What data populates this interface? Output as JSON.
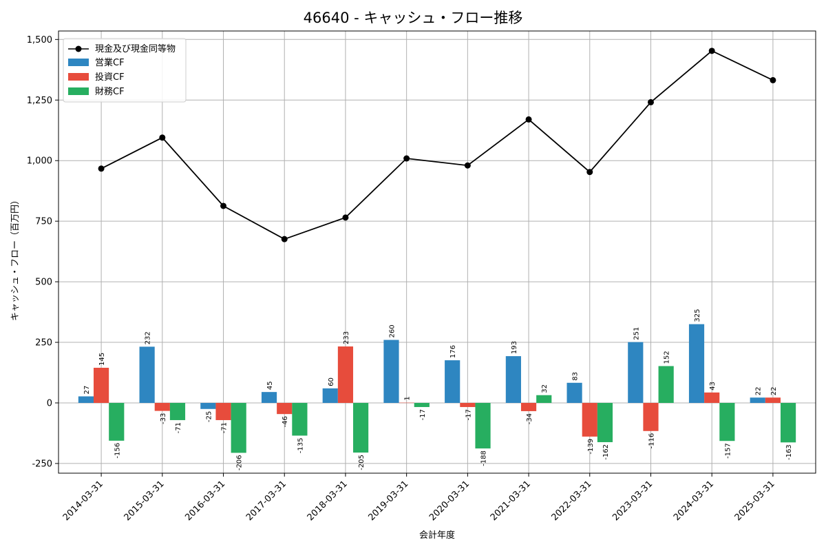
{
  "chart_data": {
    "type": "bar",
    "title": "46640 - キャッシュ・フロー推移",
    "xlabel": "会計年度",
    "ylabel": "キャッシュ・フロー（百万円）",
    "ylim": [
      -290,
      1535
    ],
    "yticks": [
      -250,
      0,
      250,
      500,
      750,
      1000,
      1250,
      1500
    ],
    "ytick_labels": [
      "-250",
      "0",
      "250",
      "500",
      "750",
      "1,000",
      "1,250",
      "1,500"
    ],
    "grid": true,
    "legend_position": "top-left",
    "categories": [
      "2014-03-31",
      "2015-03-31",
      "2016-03-31",
      "2017-03-31",
      "2018-03-31",
      "2019-03-31",
      "2020-03-31",
      "2021-03-31",
      "2022-03-31",
      "2023-03-31",
      "2024-03-31",
      "2025-03-31"
    ],
    "line_series": {
      "name": "現金及び現金同等物",
      "color": "#000000",
      "values": [
        967,
        1095,
        813,
        676,
        765,
        1009,
        980,
        1170,
        953,
        1241,
        1453,
        1332
      ]
    },
    "series": [
      {
        "name": "営業CF",
        "color": "#2e86c1",
        "values": [
          27,
          232,
          -25,
          45,
          60,
          260,
          176,
          193,
          83,
          251,
          325,
          22
        ]
      },
      {
        "name": "投資CF",
        "color": "#e74c3c",
        "values": [
          145,
          -33,
          -71,
          -46,
          233,
          1,
          -17,
          -34,
          -139,
          -116,
          43,
          22
        ]
      },
      {
        "name": "財務CF",
        "color": "#27ae60",
        "values": [
          -156,
          -71,
          -206,
          -135,
          -205,
          -17,
          -188,
          32,
          -162,
          152,
          -157,
          -163
        ]
      }
    ]
  }
}
